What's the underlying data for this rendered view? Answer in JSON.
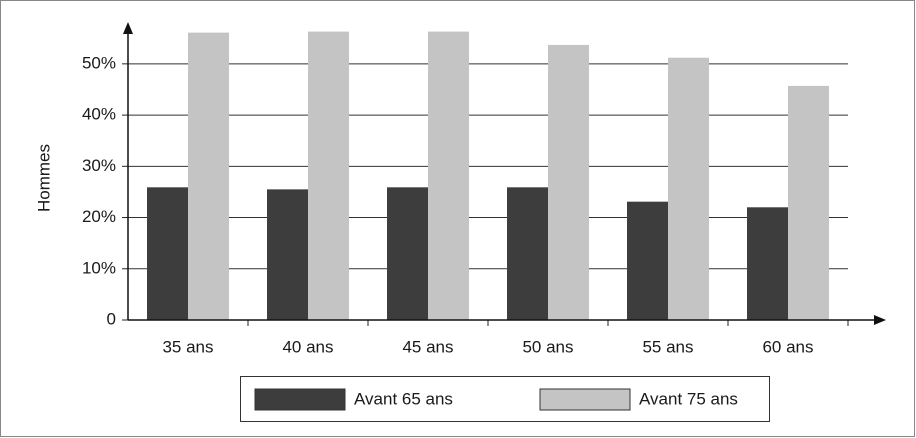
{
  "chart_data": {
    "type": "bar",
    "y_label": "Hommes",
    "categories": [
      "35 ans",
      "40 ans",
      "45 ans",
      "50 ans",
      "55 ans",
      "60 ans"
    ],
    "series": [
      {
        "name": "Avant 65 ans",
        "color": "#3d3d3d",
        "values": [
          25.9,
          25.5,
          25.9,
          25.9,
          23.1,
          22.0
        ]
      },
      {
        "name": "Avant 75 ans",
        "color": "#c4c4c4",
        "values": [
          56.1,
          56.3,
          56.3,
          53.7,
          51.2,
          45.7
        ]
      }
    ],
    "ylim": [
      0,
      57
    ],
    "yticks": [
      0,
      {
        "value": 10,
        "label": "10%"
      },
      {
        "value": 20,
        "label": "20%"
      },
      {
        "value": 30,
        "label": "30%"
      },
      {
        "value": 40,
        "label": "40%"
      },
      {
        "value": 50,
        "label": "50%"
      }
    ],
    "grid": true,
    "legend": "bottom"
  }
}
